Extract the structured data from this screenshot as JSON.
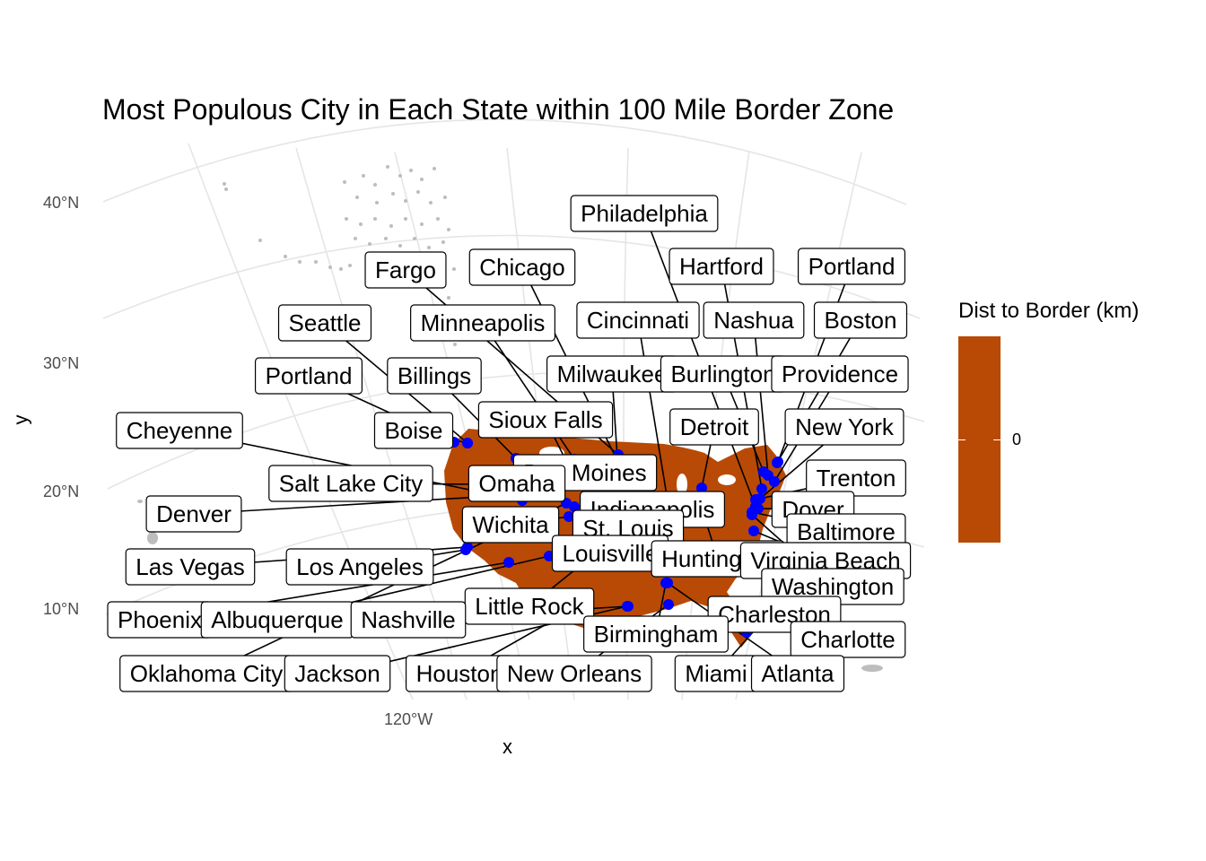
{
  "title": "Most Populous City in Each State within 100 Mile Border Zone",
  "x_axis_label": "x",
  "y_axis_label": "y",
  "lat_ticks": [
    "40°N",
    "30°N",
    "20°N",
    "10°N"
  ],
  "lon_ticks": [
    "120°W"
  ],
  "legend": {
    "title": "Dist to Border (km)",
    "tick": "0",
    "color": "#b84a06"
  },
  "colors": {
    "land": "#b84a06",
    "point": "#0000ff",
    "graticule": "#e5e5e5",
    "other_land": "#bdbdbd"
  },
  "cities": [
    {
      "name": "Philadelphia",
      "lon": -75.16,
      "lat": 39.95
    },
    {
      "name": "Hartford",
      "lon": -72.68,
      "lat": 41.76
    },
    {
      "name": "Portland",
      "lon": -70.26,
      "lat": 43.66
    },
    {
      "name": "Fargo",
      "lon": -96.79,
      "lat": 46.88
    },
    {
      "name": "Chicago",
      "lon": -87.63,
      "lat": 41.88
    },
    {
      "name": "Seattle",
      "lon": -122.33,
      "lat": 47.61
    },
    {
      "name": "Minneapolis",
      "lon": -93.27,
      "lat": 44.98
    },
    {
      "name": "Cincinnati",
      "lon": -84.51,
      "lat": 39.1
    },
    {
      "name": "Nashua",
      "lon": -71.47,
      "lat": 42.77
    },
    {
      "name": "Boston",
      "lon": -71.06,
      "lat": 42.36
    },
    {
      "name": "Portland",
      "lon": -122.68,
      "lat": 45.52
    },
    {
      "name": "Billings",
      "lon": -108.5,
      "lat": 45.78
    },
    {
      "name": "Milwaukee",
      "lon": -87.91,
      "lat": 43.04
    },
    {
      "name": "Burlington",
      "lon": -73.21,
      "lat": 44.48
    },
    {
      "name": "Providence",
      "lon": -71.41,
      "lat": 41.82
    },
    {
      "name": "Cheyenne",
      "lon": -104.82,
      "lat": 41.14
    },
    {
      "name": "Boise",
      "lon": -116.2,
      "lat": 43.62
    },
    {
      "name": "Sioux Falls",
      "lon": -96.73,
      "lat": 43.55
    },
    {
      "name": "Detroit",
      "lon": -83.05,
      "lat": 42.33
    },
    {
      "name": "New York",
      "lon": -74.01,
      "lat": 40.71
    },
    {
      "name": "Des Moines",
      "lon": -93.61,
      "lat": 41.59
    },
    {
      "name": "Trenton",
      "lon": -74.76,
      "lat": 40.22
    },
    {
      "name": "Salt Lake City",
      "lon": -111.89,
      "lat": 40.76
    },
    {
      "name": "Omaha",
      "lon": -95.93,
      "lat": 41.26
    },
    {
      "name": "Indianapolis",
      "lon": -86.16,
      "lat": 39.77
    },
    {
      "name": "Dover",
      "lon": -75.52,
      "lat": 39.16
    },
    {
      "name": "Denver",
      "lon": -104.99,
      "lat": 39.74
    },
    {
      "name": "Wichita",
      "lon": -97.34,
      "lat": 37.69
    },
    {
      "name": "St. Louis",
      "lon": -90.2,
      "lat": 38.63
    },
    {
      "name": "Baltimore",
      "lon": -76.61,
      "lat": 39.29
    },
    {
      "name": "Louisville",
      "lon": -85.76,
      "lat": 38.25
    },
    {
      "name": "Huntington",
      "lon": -82.45,
      "lat": 38.42
    },
    {
      "name": "Virginia Beach",
      "lon": -75.98,
      "lat": 36.85
    },
    {
      "name": "Las Vegas",
      "lon": -115.14,
      "lat": 36.17
    },
    {
      "name": "Los Angeles",
      "lon": -118.24,
      "lat": 34.05
    },
    {
      "name": "Washington",
      "lon": -77.04,
      "lat": 38.91
    },
    {
      "name": "Little Rock",
      "lon": -92.29,
      "lat": 34.75
    },
    {
      "name": "Phoenix",
      "lon": -112.07,
      "lat": 33.45
    },
    {
      "name": "Albuquerque",
      "lon": -106.65,
      "lat": 35.08
    },
    {
      "name": "Nashville",
      "lon": -86.78,
      "lat": 36.16
    },
    {
      "name": "Charleston",
      "lon": -79.93,
      "lat": 32.78
    },
    {
      "name": "Birmingham",
      "lon": -86.8,
      "lat": 33.52
    },
    {
      "name": "Charlotte",
      "lon": -80.84,
      "lat": 35.23
    },
    {
      "name": "Oklahoma City",
      "lon": -97.52,
      "lat": 35.47
    },
    {
      "name": "Jackson",
      "lon": -90.18,
      "lat": 32.3
    },
    {
      "name": "Houston",
      "lon": -95.37,
      "lat": 29.76
    },
    {
      "name": "New Orleans",
      "lon": -90.07,
      "lat": 29.95
    },
    {
      "name": "Miami",
      "lon": -80.19,
      "lat": 25.76
    },
    {
      "name": "Atlanta",
      "lon": -84.39,
      "lat": 33.75
    }
  ]
}
